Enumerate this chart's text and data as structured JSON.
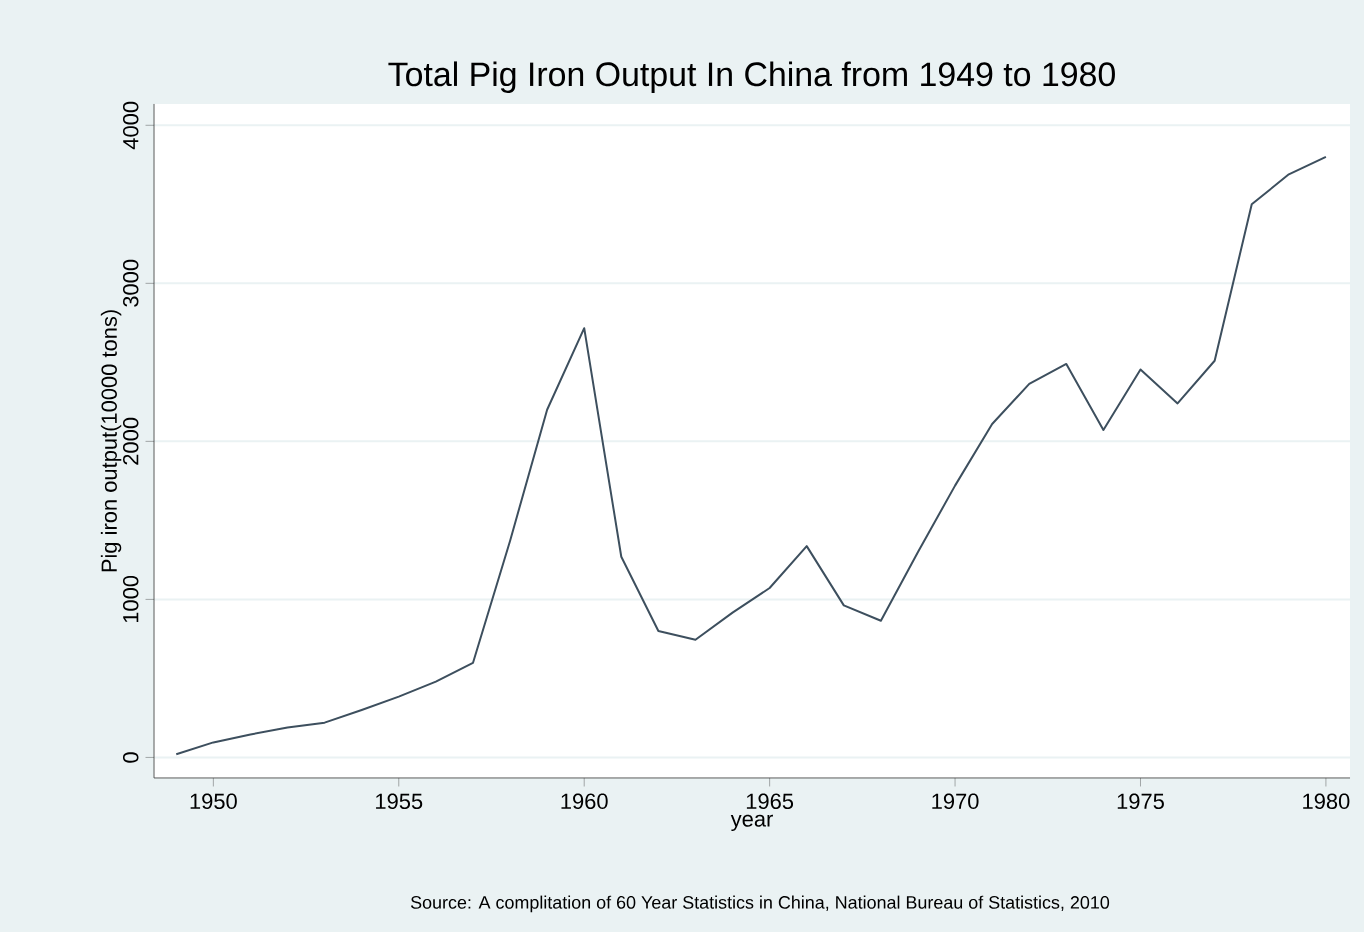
{
  "chart_data": {
    "type": "line",
    "title": "Total Pig Iron Output In China from 1949 to 1980",
    "xlabel": "year",
    "ylabel": "Pig iron output(10000 tons)",
    "annotations": [
      "Source: A complitation of 60 Year Statistics in China, National Bureau of Statistics, 2010"
    ],
    "x": [
      1949,
      1950,
      1951,
      1952,
      1953,
      1954,
      1955,
      1956,
      1957,
      1958,
      1959,
      1960,
      1961,
      1962,
      1963,
      1964,
      1965,
      1966,
      1967,
      1968,
      1969,
      1970,
      1971,
      1972,
      1973,
      1974,
      1975,
      1976,
      1977,
      1978,
      1979,
      1980
    ],
    "series": [
      {
        "color": "#3d4f5e",
        "values": [
          20,
          95,
          145,
          190,
          220,
          300,
          385,
          480,
          598,
          1370,
          2200,
          2716,
          1270,
          800,
          745,
          916,
          1072,
          1337,
          962,
          865,
          1300,
          1720,
          2110,
          2364,
          2490,
          2072,
          2455,
          2240,
          2510,
          3500,
          3690,
          3800
        ]
      }
    ],
    "xlim": [
      1948.4,
      1980.65
    ],
    "ylim": [
      -130,
      4135
    ],
    "xticks": [
      1950,
      1955,
      1960,
      1965,
      1970,
      1975,
      1980
    ],
    "yticks": [
      0,
      1000,
      2000,
      3000,
      4000
    ],
    "grid": "y",
    "marker": "none",
    "line_style": "solid"
  }
}
